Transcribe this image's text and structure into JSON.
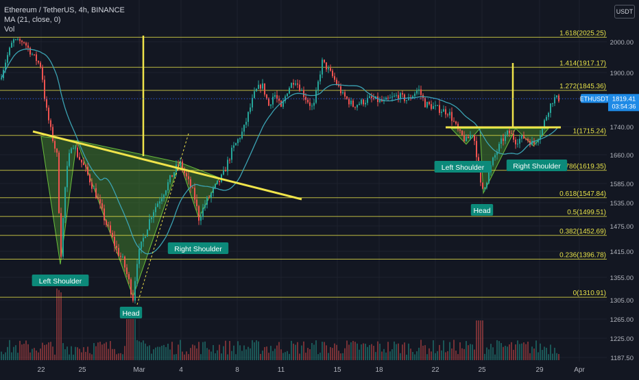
{
  "legend": {
    "symbol": "Ethereum / TetherUS, 4h, BINANCE",
    "ma": "MA (21, close, 0)",
    "vol": "Vol"
  },
  "currency_button": "USDT",
  "price_label": {
    "symbol": "ETHUSDT",
    "price": "1819.41",
    "countdown": "03:54:36"
  },
  "colors": {
    "background": "#131722",
    "fib_line": "#e8e34a",
    "trend_line": "#f0e44a",
    "up": "#26a69a",
    "down": "#ef5350",
    "ma": "#3ba3b3",
    "pattern_fill": "#3f7a2c",
    "tag_bg": "#0c8a7a",
    "price_tag": "#1e8ae6"
  },
  "chart_data": {
    "type": "candlestick",
    "x_tick_labels": [
      "22",
      "25",
      "Mar",
      "4",
      "8",
      "11",
      "15",
      "18",
      "22",
      "25",
      "29",
      "Apr"
    ],
    "y_tick_labels": [
      "2000.00",
      "1900.00",
      "1820.00",
      "1740.00",
      "1660.00",
      "1585.00",
      "1535.00",
      "1475.00",
      "1415.00",
      "1355.00",
      "1305.00",
      "1265.00",
      "1225.00",
      "1187.50"
    ],
    "ylim": [
      1187.5,
      2050
    ],
    "fib_levels": [
      {
        "label": "1.618(2025.25)",
        "value": 2025.25
      },
      {
        "label": "1.414(1917.17)",
        "value": 1917.17
      },
      {
        "label": "1.272(1845.36)",
        "value": 1845.36
      },
      {
        "label": "1(1715.24)",
        "value": 1715.24
      },
      {
        "label": "0.786(1619.35)",
        "value": 1619.35
      },
      {
        "label": "0.618(1547.84)",
        "value": 1547.84
      },
      {
        "label": "0.5(1499.51)",
        "value": 1499.51
      },
      {
        "label": "0.382(1452.69)",
        "value": 1452.69
      },
      {
        "label": "0.236(1396.78)",
        "value": 1396.78
      },
      {
        "label": "0(1310.91)",
        "value": 1310.91
      }
    ],
    "annotations": [
      "Left Shoulder",
      "Head",
      "Right Shoulder",
      "Left Shoulder",
      "Head",
      "Right Shoulder"
    ],
    "last_price": 1819.41,
    "series_name": "ETHUSDT"
  }
}
